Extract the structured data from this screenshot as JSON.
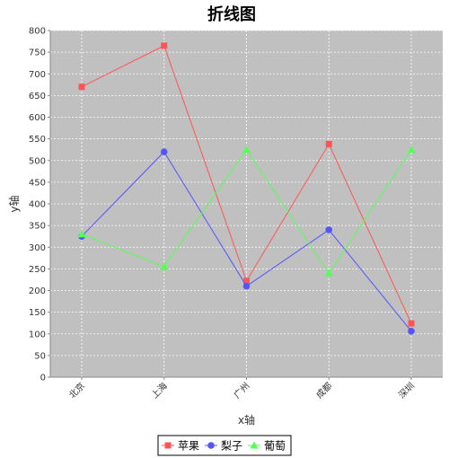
{
  "chart_data": {
    "type": "line",
    "title": "折线图",
    "xlabel": "x轴",
    "ylabel": "y轴",
    "categories": [
      "北京",
      "上海",
      "广州",
      "成都",
      "深圳"
    ],
    "ylim": [
      0,
      800
    ],
    "yticks": [
      0,
      50,
      100,
      150,
      200,
      250,
      300,
      350,
      400,
      450,
      500,
      550,
      600,
      650,
      700,
      750,
      800
    ],
    "grid": true,
    "legend_position": "bottom",
    "plot_background": "#c0c0c0",
    "series": [
      {
        "name": "苹果",
        "color": "#ff5555",
        "marker": "square",
        "values": [
          670,
          765,
          222,
          538,
          124
        ]
      },
      {
        "name": "梨子",
        "color": "#5555ff",
        "marker": "circle",
        "values": [
          325,
          520,
          210,
          340,
          106
        ]
      },
      {
        "name": "葡萄",
        "color": "#55ff55",
        "marker": "triangle",
        "values": [
          330,
          255,
          525,
          240,
          525
        ]
      }
    ]
  }
}
